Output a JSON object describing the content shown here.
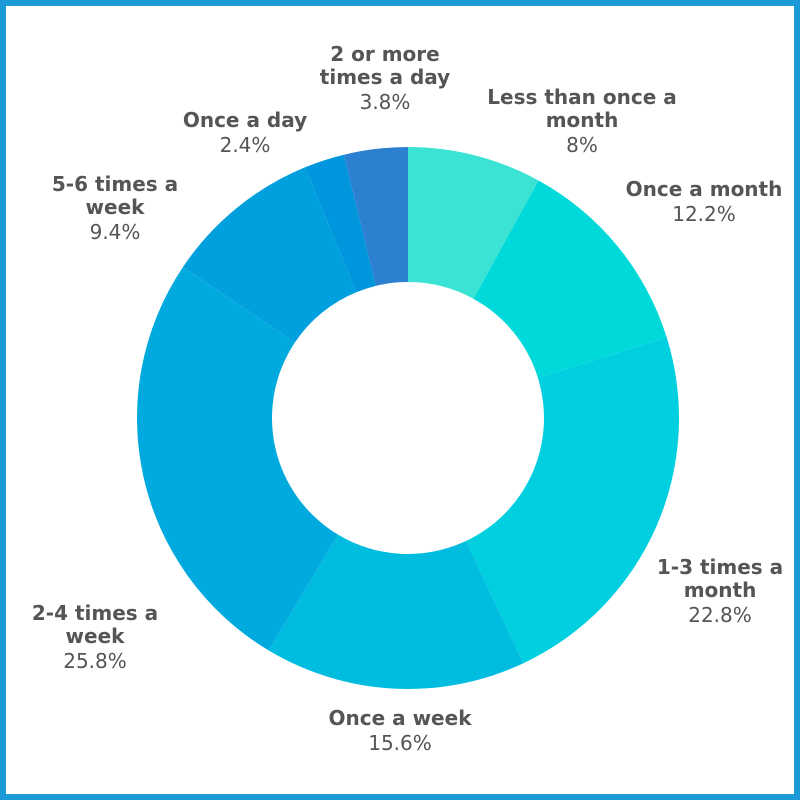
{
  "chart_data": {
    "type": "donut",
    "categories": [
      "Less than once a month",
      "Once a month",
      "1-3 times a month",
      "Once a week",
      "2-4 times a week",
      "5-6 times a week",
      "Once a day",
      "2 or more times a day"
    ],
    "values": [
      8,
      12.2,
      22.8,
      15.6,
      25.8,
      9.4,
      2.4,
      3.8
    ],
    "value_labels": [
      "8%",
      "12.2%",
      "22.8%",
      "15.6%",
      "25.8%",
      "9.4%",
      "2.4%",
      "3.8%"
    ],
    "colors": [
      "#3ae3d4",
      "#00d9da",
      "#00cfe0",
      "#00bde0",
      "#00aadf",
      "#009fde",
      "#0096dd",
      "#2d80cf"
    ]
  }
}
